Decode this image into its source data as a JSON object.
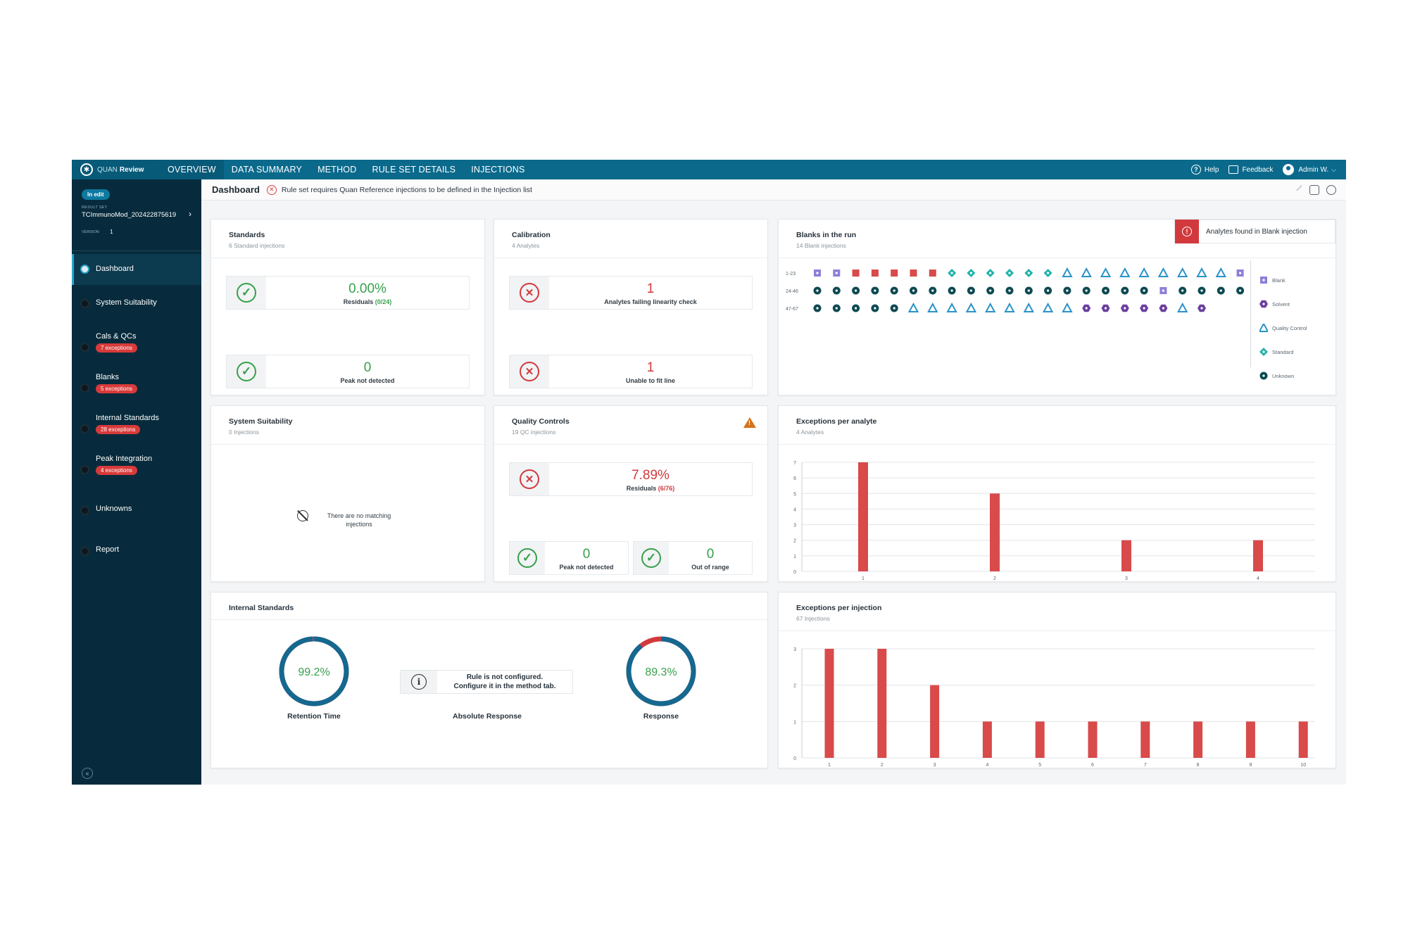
{
  "app": {
    "brand_prefix": "QUAN",
    "brand_name": "Review",
    "tabs": [
      {
        "label": "OVERVIEW",
        "active": true
      },
      {
        "label": "DATA SUMMARY"
      },
      {
        "label": "METHOD"
      },
      {
        "label": "RULE SET DETAILS"
      },
      {
        "label": "INJECTIONS"
      }
    ],
    "help": "Help",
    "feedback": "Feedback",
    "user": "Admin W."
  },
  "sidebar": {
    "status": "In edit",
    "result_set_label": "RESULT SET",
    "result_set_name": "TCImmunoMod_202422875619",
    "version_label": "VERSION",
    "version": "1",
    "items": [
      {
        "label": "Dashboard",
        "active": true,
        "badge": ""
      },
      {
        "label": "System Suitability",
        "badge": ""
      },
      {
        "label": "Cals & QCs",
        "badge": "7 exceptions"
      },
      {
        "label": "Blanks",
        "badge": "5 exceptions"
      },
      {
        "label": "Internal Standards",
        "badge": "28 exceptions"
      },
      {
        "label": "Peak Integration",
        "badge": "4 exceptions"
      },
      {
        "label": "Unknowns",
        "badge": ""
      },
      {
        "label": "Report",
        "badge": ""
      }
    ]
  },
  "header": {
    "title": "Dashboard",
    "message": "Rule set requires Quan Reference injections to be defined in the Injection list"
  },
  "standards": {
    "title": "Standards",
    "subtitle": "6 Standard injections",
    "residuals_value": "0.00%",
    "residuals_label": "Residuals",
    "residuals_count": "(0/24)",
    "peak_value": "0",
    "peak_label": "Peak not detected"
  },
  "calibration": {
    "title": "Calibration",
    "subtitle": "4 Analytes",
    "linearity_value": "1",
    "linearity_label": "Analytes failing linearity check",
    "fit_value": "1",
    "fit_label": "Unable to fit line"
  },
  "blanks": {
    "title": "Blanks in the run",
    "subtitle": "14 Blank injections",
    "alert": "Analytes found in Blank injection",
    "rows": [
      {
        "label": "1-23",
        "symbols": [
          "B",
          "B",
          "U",
          "U",
          "U",
          "U",
          "U",
          "Q",
          "Q",
          "Q",
          "Q",
          "Q",
          "Q",
          "S",
          "S",
          "S",
          "S",
          "S",
          "S",
          "S",
          "S",
          "S",
          "B"
        ]
      },
      {
        "label": "24-46",
        "symbols": [
          "K",
          "K",
          "K",
          "K",
          "K",
          "K",
          "K",
          "K",
          "K",
          "K",
          "K",
          "K",
          "K",
          "K",
          "K",
          "K",
          "K",
          "K",
          "B",
          "K",
          "K",
          "K",
          "K"
        ]
      },
      {
        "label": "47-67",
        "symbols": [
          "K",
          "K",
          "K",
          "K",
          "K",
          "S",
          "S",
          "S",
          "S",
          "S",
          "S",
          "S",
          "S",
          "S",
          "V",
          "V",
          "V",
          "V",
          "V",
          "S",
          "V"
        ]
      }
    ],
    "legend": [
      {
        "key": "B",
        "label": "Blank",
        "color": "#8b7fd9"
      },
      {
        "key": "V",
        "label": "Solvent",
        "color": "#6b3fa0"
      },
      {
        "key": "S",
        "label": "Quality Control",
        "color": "#2a93c9"
      },
      {
        "key": "Q",
        "label": "Standard",
        "color": "#20b2aa"
      },
      {
        "key": "K",
        "label": "Unknown",
        "color": "#0e4a52"
      }
    ],
    "unlisted_color": "#d94a4a"
  },
  "system_suitability": {
    "title": "System Suitability",
    "subtitle": "0 Injections",
    "empty_line1": "There are no matching",
    "empty_line2": "injections"
  },
  "quality_controls": {
    "title": "Quality Controls",
    "subtitle": "19 QC injections",
    "residuals_value": "7.89%",
    "residuals_label": "Residuals",
    "residuals_count": "(6/76)",
    "peak_value": "0",
    "peak_label": "Peak not detected",
    "range_value": "0",
    "range_label": "Out of range"
  },
  "exceptions_per_analyte": {
    "title": "Exceptions per analyte",
    "subtitle": "4 Analytes"
  },
  "internal_standards": {
    "title": "Internal Standards",
    "retention_value": "99.2%",
    "retention_label": "Retention Time",
    "retention_fraction": 0.992,
    "absolute_label": "Absolute Response",
    "absolute_msg_line1": "Rule is not configured.",
    "absolute_msg_line2": "Configure it in the method tab.",
    "response_value": "89.3%",
    "response_label": "Response",
    "response_fraction": 0.893
  },
  "exceptions_per_injection": {
    "title": "Exceptions per injection",
    "subtitle": "67 Injections"
  },
  "chart_data": [
    {
      "type": "bar",
      "title": "Exceptions per analyte",
      "categories": [
        "1",
        "2",
        "3",
        "4"
      ],
      "values": [
        7,
        5,
        2,
        2
      ],
      "ylim": [
        0,
        7
      ],
      "yticks": [
        "0",
        "1",
        "2",
        "3",
        "4",
        "5",
        "6",
        "7"
      ],
      "grid": true,
      "color": "#d94a4a"
    },
    {
      "type": "bar",
      "title": "Exceptions per injection",
      "categories": [
        "1",
        "2",
        "3",
        "4",
        "5",
        "6",
        "7",
        "8",
        "9",
        "10"
      ],
      "values": [
        3,
        3,
        2,
        1,
        1,
        1,
        1,
        1,
        1,
        1
      ],
      "ylim": [
        0,
        3
      ],
      "yticks": [
        "0",
        "1",
        "2",
        "3"
      ],
      "grid": true,
      "color": "#d94a4a"
    }
  ]
}
